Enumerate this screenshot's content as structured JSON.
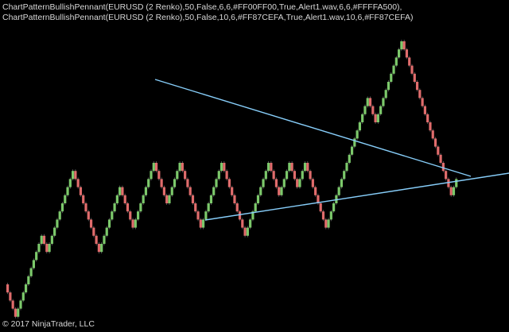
{
  "header": {
    "indicator_text": "ChartPatternBullishPennant(EURUSD (2 Renko),50,False,6,6,#FF00FF00,True,Alert1.wav,6,6,#FFFFA500), ChartPatternBullishPennant(EURUSD (2 Renko),50,False,10,6,#FF87CEFA,True,Alert1.wav,10,6,#FF87CEFA)"
  },
  "footer": {
    "copyright": "© 2017 NinjaTrader, LLC"
  },
  "colors": {
    "background": "#000000",
    "up_brick": "#7CC96B",
    "down_brick": "#E06C6C",
    "trendline": "#87CEFA",
    "text": "#D8D8D8"
  },
  "chart_data": {
    "type": "renko",
    "instrument": "EURUSD (2 Renko)",
    "bricks": [
      -1,
      -1,
      -1,
      -1,
      1,
      1,
      1,
      1,
      1,
      1,
      1,
      1,
      1,
      1,
      -1,
      -1,
      1,
      1,
      1,
      1,
      1,
      1,
      1,
      1,
      1,
      1,
      -1,
      -1,
      -1,
      -1,
      -1,
      -1,
      -1,
      -1,
      -1,
      -1,
      1,
      1,
      1,
      1,
      1,
      1,
      1,
      1,
      -1,
      -1,
      -1,
      -1,
      -1,
      1,
      1,
      1,
      1,
      1,
      1,
      1,
      1,
      -1,
      -1,
      -1,
      -1,
      -1,
      1,
      1,
      1,
      1,
      1,
      -1,
      -1,
      -1,
      -1,
      -1,
      -1,
      -1,
      -1,
      1,
      1,
      1,
      1,
      1,
      1,
      1,
      1,
      -1,
      -1,
      -1,
      -1,
      -1,
      -1,
      -1,
      -1,
      -1,
      1,
      1,
      1,
      1,
      1,
      1,
      1,
      1,
      1,
      -1,
      -1,
      -1,
      -1,
      1,
      1,
      1,
      1,
      -1,
      -1,
      -1,
      1,
      1,
      1,
      -1,
      -1,
      -1,
      -1,
      -1,
      -1,
      -1,
      -1,
      1,
      1,
      1,
      1,
      1,
      1,
      1,
      1,
      1,
      1,
      1,
      1,
      1,
      1,
      1,
      1,
      -1,
      -1,
      -1,
      1,
      1,
      1,
      1,
      1,
      1,
      1,
      1,
      1,
      1,
      -1,
      -1,
      -1,
      -1,
      -1,
      -1,
      -1,
      -1,
      -1,
      -1,
      -1,
      -1,
      -1,
      -1,
      -1,
      -1,
      -1,
      -1,
      -1,
      1,
      1
    ],
    "pennant": {
      "upper_trendline": "descending",
      "lower_trendline": "ascending"
    }
  }
}
